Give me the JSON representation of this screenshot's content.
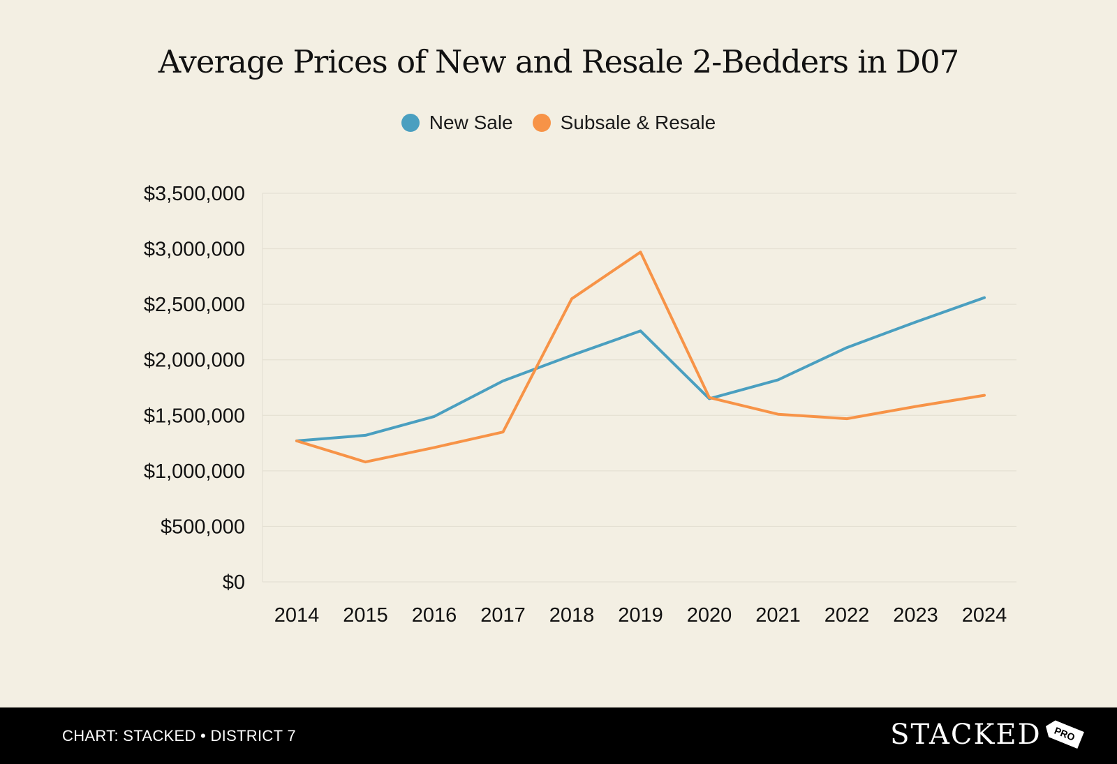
{
  "chart_data": {
    "type": "line",
    "title": "Average Prices of New and Resale 2-Bedders in D07",
    "xlabel": "",
    "ylabel": "",
    "categories": [
      "2014",
      "2015",
      "2016",
      "2017",
      "2018",
      "2019",
      "2020",
      "2021",
      "2022",
      "2023",
      "2024"
    ],
    "series": [
      {
        "name": "New Sale",
        "color": "#4a9fc0",
        "values": [
          1270000,
          1320000,
          1490000,
          1810000,
          2040000,
          2260000,
          1650000,
          1820000,
          2110000,
          2340000,
          2560000
        ]
      },
      {
        "name": "Subsale & Resale",
        "color": "#f79347",
        "values": [
          1270000,
          1080000,
          1210000,
          1350000,
          2550000,
          2970000,
          1660000,
          1510000,
          1470000,
          1580000,
          1680000
        ]
      }
    ],
    "ylim": [
      0,
      3500000
    ],
    "yticks": [
      0,
      500000,
      1000000,
      1500000,
      2000000,
      2500000,
      3000000,
      3500000
    ],
    "ytick_labels": [
      "$0",
      "$500,000",
      "$1,000,000",
      "$1,500,000",
      "$2,000,000",
      "$2,500,000",
      "$3,000,000",
      "$3,500,000"
    ],
    "grid": true,
    "legend_position": "top-center"
  },
  "footer": {
    "caption": "CHART: STACKED • DISTRICT 7",
    "logo_text": "STACKED",
    "badge_text": "PRO"
  },
  "colors": {
    "background": "#f3efe3",
    "gridline": "#e2ddd0",
    "footer_bg": "#000000"
  }
}
